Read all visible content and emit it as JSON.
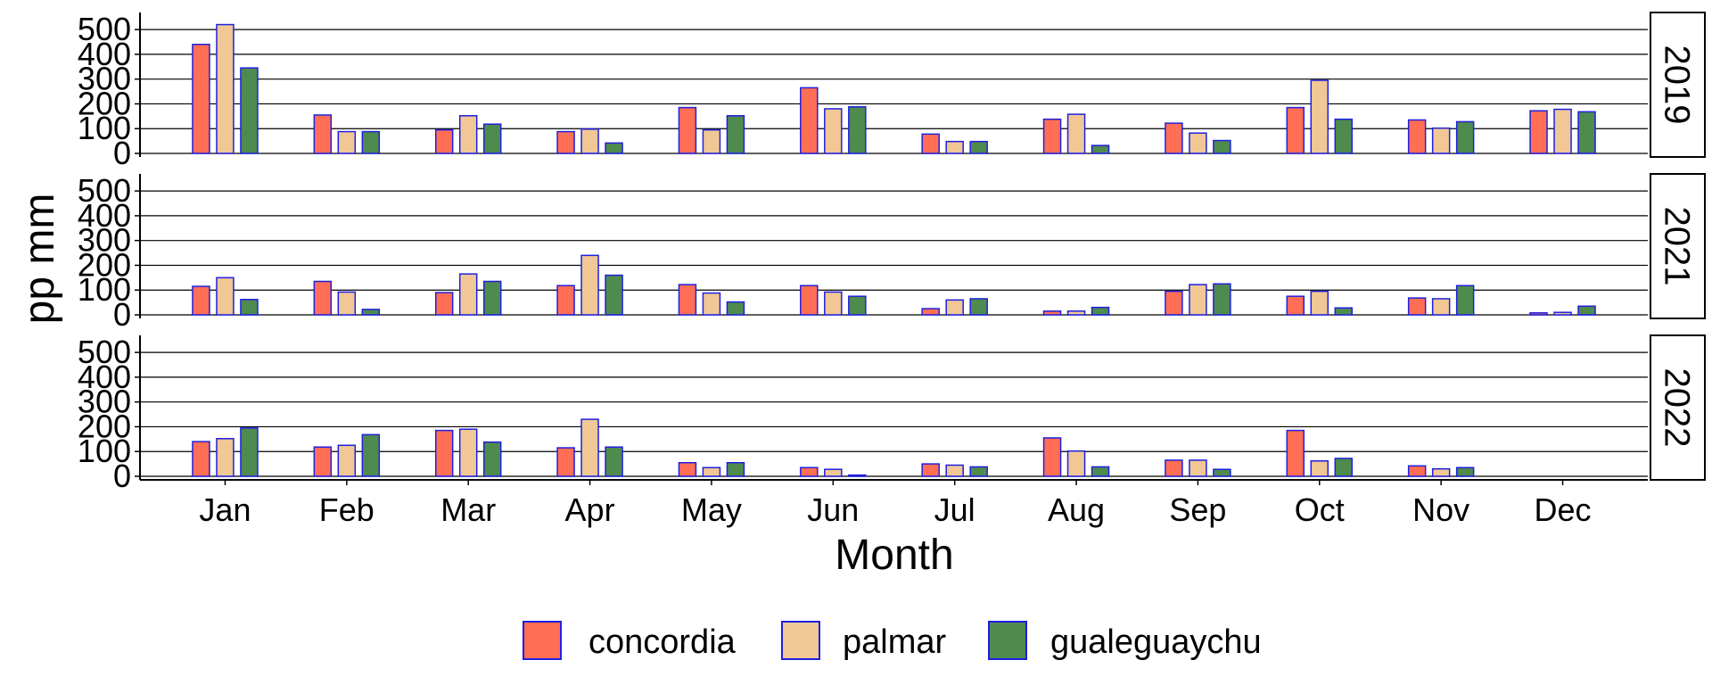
{
  "chart_data": {
    "type": "bar",
    "facet_by": "year",
    "xlabel": "Month",
    "ylabel": "pp mm",
    "ylim": [
      0,
      540
    ],
    "yticks": [
      "0",
      "100",
      "200",
      "300",
      "400",
      "500"
    ],
    "grid": "horizontal major lines",
    "bar_outline_color": "#1f1fe0",
    "legend_position": "bottom",
    "categories": [
      "Jan",
      "Feb",
      "Mar",
      "Apr",
      "May",
      "Jun",
      "Jul",
      "Aug",
      "Sep",
      "Oct",
      "Nov",
      "Dec"
    ],
    "series": [
      {
        "name": "concordia",
        "color": "#ff6e55"
      },
      {
        "name": "palmar",
        "color": "#f0c795"
      },
      {
        "name": "gualeguaychu",
        "color": "#4f8a4f"
      }
    ],
    "panels": [
      {
        "year": "2019",
        "values": {
          "concordia": [
            440,
            155,
            95,
            88,
            185,
            265,
            78,
            138,
            122,
            185,
            135,
            172
          ],
          "palmar": [
            520,
            88,
            152,
            98,
            95,
            180,
            48,
            158,
            82,
            295,
            102,
            178
          ],
          "gualeguaychu": [
            345,
            88,
            118,
            42,
            152,
            188,
            48,
            32,
            52,
            138,
            128,
            168
          ]
        }
      },
      {
        "year": "2021",
        "values": {
          "concordia": [
            115,
            135,
            90,
            118,
            122,
            118,
            25,
            15,
            95,
            75,
            68,
            8
          ],
          "palmar": [
            150,
            92,
            165,
            240,
            88,
            92,
            60,
            15,
            122,
            95,
            65,
            10
          ],
          "gualeguaychu": [
            62,
            22,
            135,
            160,
            52,
            75,
            65,
            30,
            125,
            28,
            118,
            35
          ]
        }
      },
      {
        "year": "2022",
        "values": {
          "concordia": [
            140,
            118,
            185,
            115,
            55,
            35,
            50,
            155,
            65,
            185,
            42,
            null
          ],
          "palmar": [
            152,
            125,
            190,
            230,
            35,
            28,
            45,
            102,
            65,
            62,
            30,
            null
          ],
          "gualeguaychu": [
            195,
            168,
            138,
            118,
            55,
            5,
            38,
            38,
            28,
            72,
            35,
            null
          ]
        }
      }
    ]
  }
}
